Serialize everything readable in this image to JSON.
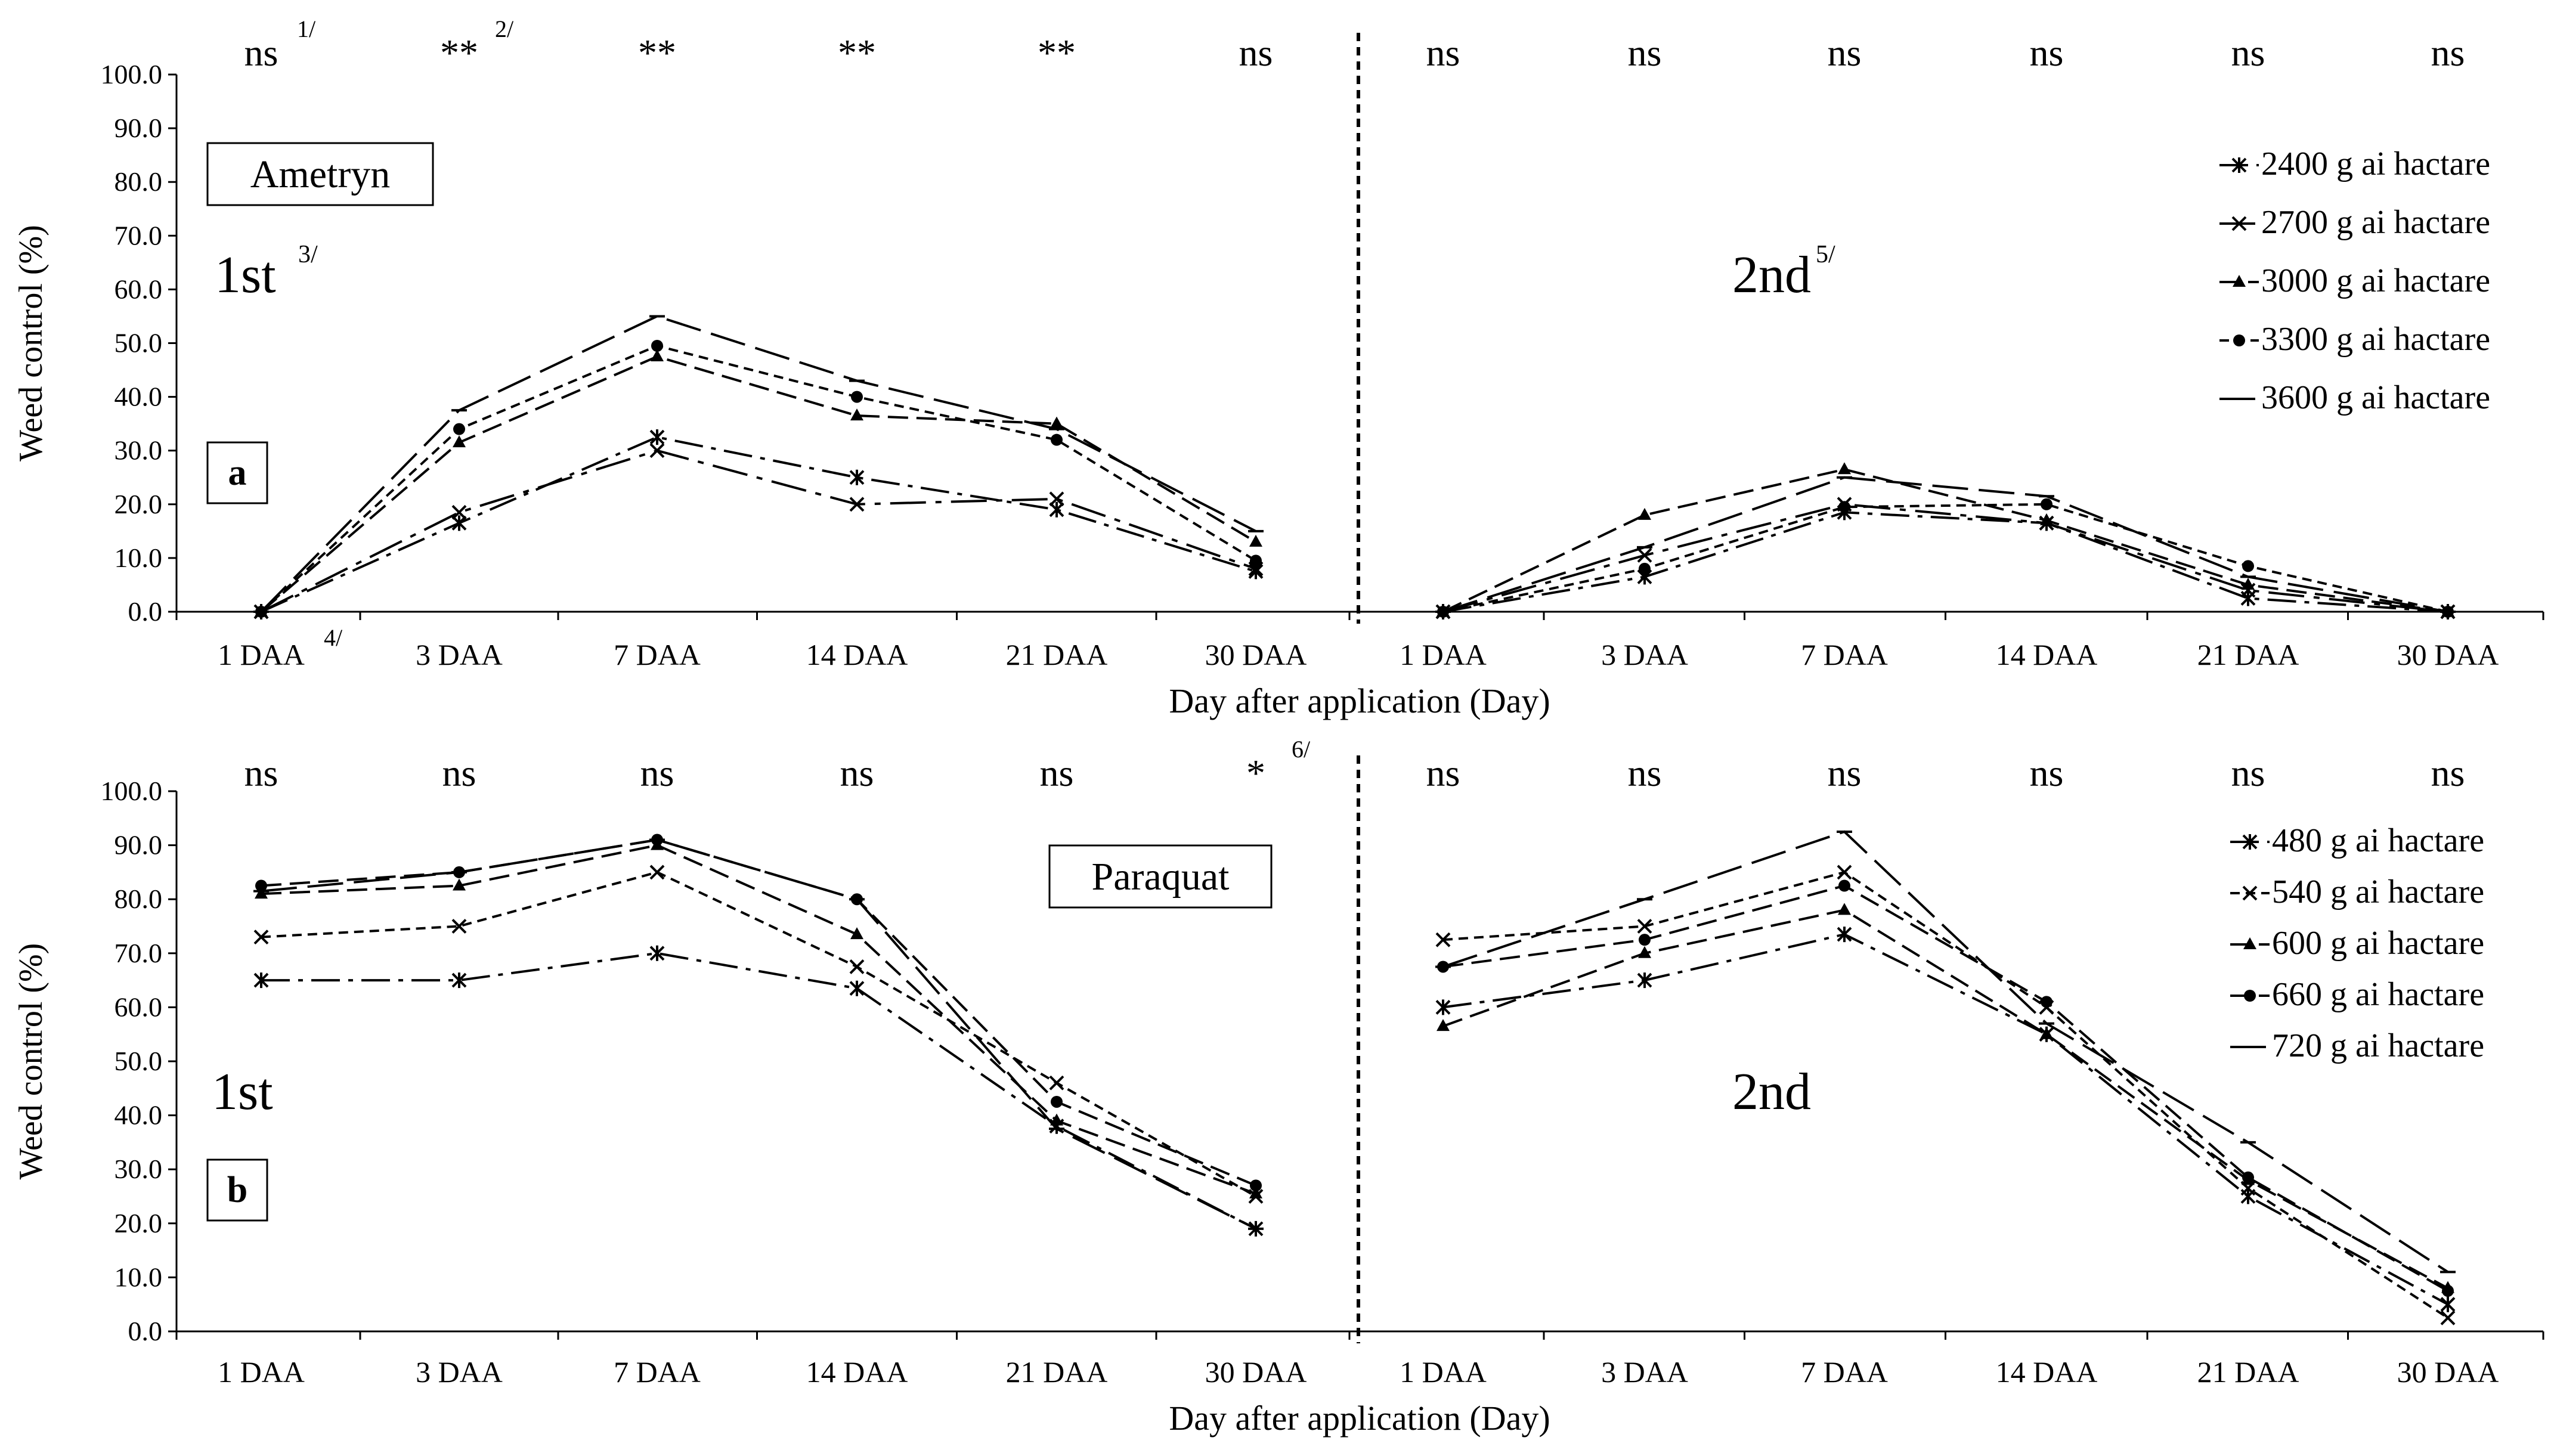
{
  "chart_data": [
    {
      "type": "line",
      "panel_label": "a",
      "herbicide": "Ametryn",
      "ylabel": "Weed control (%)",
      "xlabel": "Day after application (Day)",
      "ylim": [
        0,
        100
      ],
      "yticks": [
        "0.0",
        "10.0",
        "20.0",
        "30.0",
        "40.0",
        "50.0",
        "60.0",
        "70.0",
        "80.0",
        "90.0",
        "100.0"
      ],
      "categories": [
        "1 DAA",
        "3 DAA",
        "7 DAA",
        "14 DAA",
        "21 DAA",
        "30 DAA",
        "1 DAA",
        "3 DAA",
        "7 DAA",
        "14 DAA",
        "21 DAA",
        "30 DAA"
      ],
      "first_cat_sup": "4/",
      "sections": [
        {
          "label": "1st",
          "sup": "3/"
        },
        {
          "label": "2nd",
          "sup": "5/"
        }
      ],
      "significance": [
        {
          "text": "ns",
          "sup": "1/"
        },
        {
          "text": "**",
          "sup": "2/"
        },
        {
          "text": "**",
          "sup": ""
        },
        {
          "text": "**",
          "sup": ""
        },
        {
          "text": "**",
          "sup": ""
        },
        {
          "text": "ns",
          "sup": ""
        },
        {
          "text": "ns",
          "sup": ""
        },
        {
          "text": "ns",
          "sup": ""
        },
        {
          "text": "ns",
          "sup": ""
        },
        {
          "text": "ns",
          "sup": ""
        },
        {
          "text": "ns",
          "sup": ""
        },
        {
          "text": "ns",
          "sup": ""
        }
      ],
      "series": [
        {
          "name": "2400 g ai hactare",
          "dash": "dashdot",
          "marker": "star",
          "first": [
            0,
            16.5,
            32.5,
            25,
            19,
            7.5
          ],
          "second": [
            0,
            6.5,
            18.5,
            16.5,
            2.5,
            0
          ]
        },
        {
          "name": "2700 g ai hactare",
          "dash": "longdashdot",
          "marker": "x",
          "first": [
            0,
            18.5,
            30,
            20,
            21,
            8
          ],
          "second": [
            0,
            10.5,
            20,
            16.5,
            4,
            0
          ]
        },
        {
          "name": "3000 g ai hactare",
          "dash": "medium",
          "marker": "triangle",
          "first": [
            0,
            31.5,
            47.5,
            36.5,
            35,
            13
          ],
          "second": [
            0,
            18,
            26.5,
            17,
            5,
            0
          ]
        },
        {
          "name": "3300 g ai hactare",
          "dash": "short",
          "marker": "circle",
          "first": [
            0,
            34,
            49.5,
            40,
            32,
            9.5
          ],
          "second": [
            0,
            8,
            19.5,
            20,
            8.5,
            0
          ]
        },
        {
          "name": "3600 g ai hactare",
          "dash": "long",
          "marker": "plus",
          "first": [
            0,
            37.5,
            55,
            43,
            34,
            15
          ],
          "second": [
            0,
            12,
            25,
            21.5,
            6.5,
            0
          ]
        }
      ]
    },
    {
      "type": "line",
      "panel_label": "b",
      "herbicide": "Paraquat",
      "ylabel": "Weed control (%)",
      "xlabel": "Day after application (Day)",
      "ylim": [
        0,
        100
      ],
      "yticks": [
        "0.0",
        "10.0",
        "20.0",
        "30.0",
        "40.0",
        "50.0",
        "60.0",
        "70.0",
        "80.0",
        "90.0",
        "100.0"
      ],
      "categories": [
        "1 DAA",
        "3 DAA",
        "7 DAA",
        "14 DAA",
        "21 DAA",
        "30 DAA",
        "1 DAA",
        "3 DAA",
        "7 DAA",
        "14 DAA",
        "21 DAA",
        "30 DAA"
      ],
      "first_cat_sup": "",
      "sections": [
        {
          "label": "1st",
          "sup": ""
        },
        {
          "label": "2nd",
          "sup": ""
        }
      ],
      "significance": [
        {
          "text": "ns",
          "sup": ""
        },
        {
          "text": "ns",
          "sup": ""
        },
        {
          "text": "ns",
          "sup": ""
        },
        {
          "text": "ns",
          "sup": ""
        },
        {
          "text": "ns",
          "sup": ""
        },
        {
          "text": "*",
          "sup": "6/"
        },
        {
          "text": "ns",
          "sup": ""
        },
        {
          "text": "ns",
          "sup": ""
        },
        {
          "text": "ns",
          "sup": ""
        },
        {
          "text": "ns",
          "sup": ""
        },
        {
          "text": "ns",
          "sup": ""
        },
        {
          "text": "ns",
          "sup": ""
        }
      ],
      "series": [
        {
          "name": "480 g ai hactare",
          "dash": "dashdot",
          "marker": "star",
          "first": [
            65,
            65,
            70,
            63.5,
            38,
            19
          ],
          "second": [
            60,
            65,
            73.5,
            55,
            25,
            5
          ]
        },
        {
          "name": "540 g ai hactare",
          "dash": "short",
          "marker": "x",
          "first": [
            73,
            75,
            85,
            67.5,
            46,
            25
          ],
          "second": [
            72.5,
            75,
            85,
            60,
            26.5,
            2.5
          ]
        },
        {
          "name": "600 g ai hactare",
          "dash": "medium",
          "marker": "triangle",
          "first": [
            81,
            82.5,
            90,
            73.5,
            39,
            25.5
          ],
          "second": [
            56.5,
            70,
            78,
            55,
            28,
            8
          ]
        },
        {
          "name": "660 g ai hactare",
          "dash": "medium",
          "marker": "circle",
          "first": [
            82.5,
            85,
            91,
            80,
            42.5,
            27
          ],
          "second": [
            67.5,
            72.5,
            82.5,
            61,
            28.5,
            7.5
          ]
        },
        {
          "name": "720 g ai hactare",
          "dash": "long",
          "marker": "plus",
          "first": [
            81.5,
            85,
            91,
            80,
            37.5,
            19
          ],
          "second": [
            67.5,
            80,
            92.5,
            57,
            35,
            11
          ]
        }
      ]
    }
  ]
}
